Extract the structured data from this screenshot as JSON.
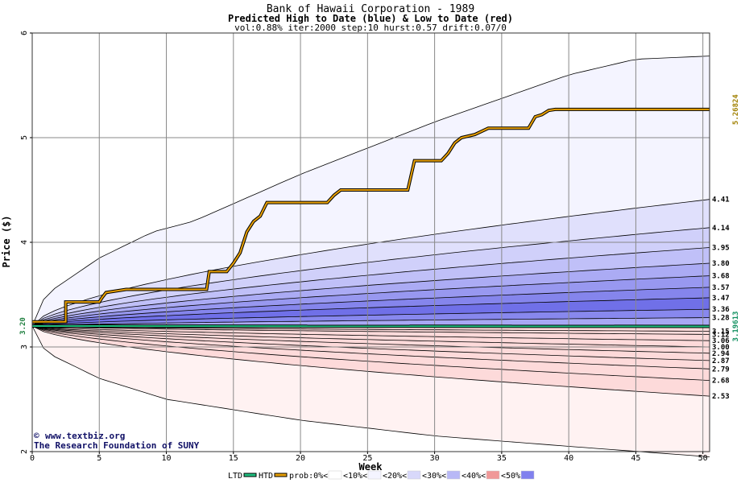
{
  "chart_data": {
    "type": "area",
    "title": "Bank of Hawaii Corporation - 1989",
    "subtitle": "Predicted High to Date (blue) &  Low to Date (red)",
    "params": "vol:0.88% iter:2000 step:10 hurst:0.57 drift:0.07/0",
    "xlabel": "Week",
    "ylabel": "Price ($)",
    "xlim": [
      0,
      50.5
    ],
    "ylim": [
      2,
      6
    ],
    "x_ticks": [
      0,
      5,
      10,
      15,
      20,
      25,
      30,
      35,
      40,
      45,
      50
    ],
    "y_ticks": [
      2,
      3,
      4,
      5,
      6
    ],
    "grid": true,
    "start_price": 3.2,
    "start_label": "3.20",
    "htd_final": 5.26824,
    "htd_final_label": "5.26824",
    "ltd_final": 3.19613,
    "ltd_final_label": "3.19613",
    "htd_series": {
      "name": "HTD",
      "color": "#e8a000",
      "x": [
        0,
        2.5,
        2.5,
        5,
        5.2,
        5.5,
        7,
        13,
        13.2,
        14.5,
        15,
        15.5,
        16,
        16.5,
        17,
        17.5,
        18,
        22,
        22.5,
        23,
        28,
        28.5,
        29,
        30.5,
        31,
        31.5,
        32,
        33,
        33.5,
        34,
        35.5,
        37,
        37.5,
        38,
        38.5,
        39,
        50.5
      ],
      "y": [
        3.24,
        3.24,
        3.43,
        3.43,
        3.47,
        3.52,
        3.55,
        3.55,
        3.72,
        3.72,
        3.8,
        3.9,
        4.1,
        4.2,
        4.25,
        4.38,
        4.38,
        4.38,
        4.45,
        4.5,
        4.5,
        4.78,
        4.78,
        4.78,
        4.85,
        4.95,
        5.0,
        5.03,
        5.06,
        5.09,
        5.09,
        5.09,
        5.2,
        5.22,
        5.26,
        5.27,
        5.27
      ]
    },
    "ltd_series": {
      "name": "LTD",
      "color": "#20c080",
      "x": [
        0,
        50.5
      ],
      "y": [
        3.2,
        3.19613
      ]
    },
    "high_bands": {
      "end_labels": [
        "4.41",
        "4.14",
        "3.95",
        "3.80",
        "3.68",
        "3.57",
        "3.47",
        "3.36",
        "3.28"
      ],
      "end_values": [
        4.41,
        4.14,
        3.95,
        3.8,
        3.68,
        3.57,
        3.47,
        3.36,
        3.28
      ],
      "outer_envelope": {
        "x": [
          0,
          1,
          5,
          9,
          12,
          20,
          30,
          40,
          45,
          50.5
        ],
        "y": [
          3.2,
          3.5,
          3.85,
          4.1,
          4.2,
          4.65,
          5.15,
          5.6,
          5.75,
          5.78
        ]
      },
      "colors": [
        "#f4f4ff",
        "#e0e0fc",
        "#d0d0fa",
        "#c0c0f8",
        "#ababf4",
        "#9898f0",
        "#8585ec",
        "#7070e8",
        "#8888ee",
        "#a8a8f4",
        "#c8c8f8"
      ]
    },
    "low_bands": {
      "end_labels": [
        "3.15",
        "3.12",
        "3.06",
        "3.00",
        "2.94",
        "2.87",
        "2.79",
        "2.68",
        "2.53"
      ],
      "end_values": [
        3.15,
        3.12,
        3.06,
        3.0,
        2.94,
        2.87,
        2.79,
        2.68,
        2.53
      ],
      "outer_envelope": {
        "x": [
          0,
          1,
          5,
          10,
          20,
          30,
          40,
          50.5
        ],
        "y": [
          3.2,
          2.95,
          2.7,
          2.5,
          2.3,
          2.15,
          2.05,
          1.95
        ]
      },
      "colors": [
        "#fff2f2",
        "#fde0e0",
        "#fcd0d0",
        "#fab8b8",
        "#f8a4a4",
        "#f69090",
        "#f48080",
        "#f89898",
        "#fbbcbc",
        "#fddada"
      ]
    },
    "legend": [
      {
        "label": "LTD",
        "color": "#20c080",
        "type": "line"
      },
      {
        "label": "HTD",
        "color": "#e8a000",
        "type": "line"
      },
      {
        "label": "prob:0%<",
        "color": "#ffffff",
        "type": "swatch"
      },
      {
        "label": "<10%<",
        "color": "#f4f4ff",
        "type": "swatch"
      },
      {
        "label": "<20%<",
        "color": "#d8d8fa",
        "type": "swatch"
      },
      {
        "label": "<30%<",
        "color": "#b8b8f6",
        "type": "swatch"
      },
      {
        "label": "<40%<",
        "color": "#f09898",
        "type": "swatch"
      },
      {
        "label": "<50%",
        "color": "#8080ee",
        "type": "swatch"
      }
    ],
    "credit": {
      "line1": "www.textbiz.org",
      "line2": "The Research Foundation of SUNY",
      "symbol": "©"
    }
  }
}
